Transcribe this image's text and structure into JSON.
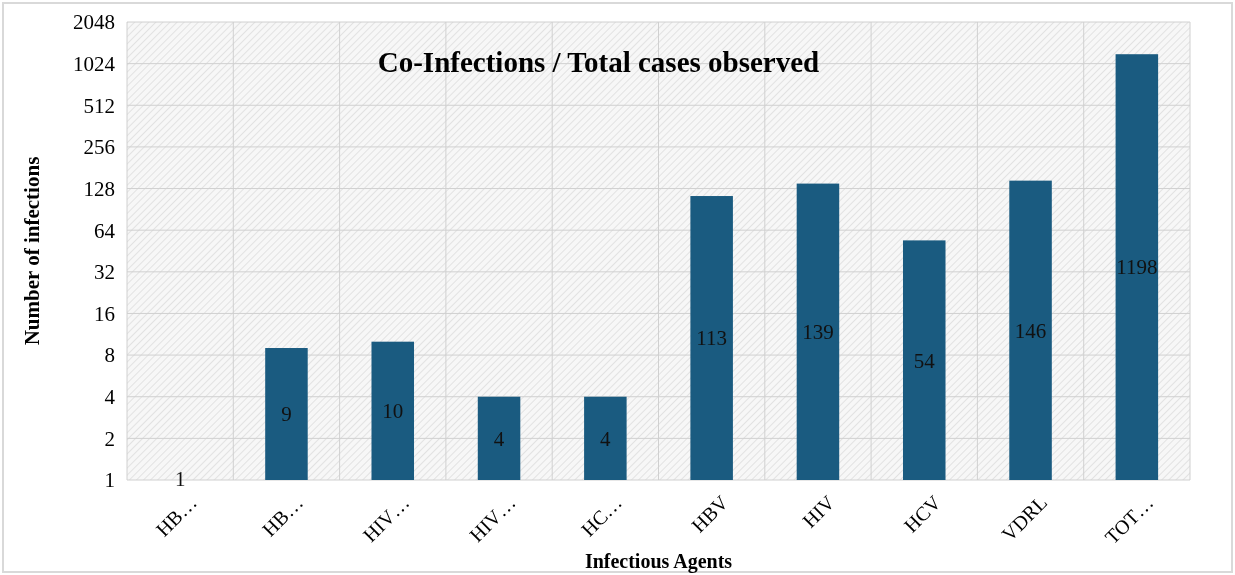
{
  "chart_data": {
    "type": "bar",
    "title": "Co-Infections / Total cases observed",
    "xlabel": "Infectious Agents",
    "ylabel": "Number of infections",
    "categories": [
      "HB…",
      "HB…",
      "HIV…",
      "HIV…",
      "HC…",
      "HBV",
      "HIV",
      "HCV",
      "VDRL",
      "TOT…"
    ],
    "values": [
      1,
      9,
      10,
      4,
      4,
      113,
      139,
      54,
      146,
      1198
    ],
    "colors": [
      "#2a5a9c",
      "#1a5b80",
      "#1a5b80",
      "#1a5b80",
      "#1a5b80",
      "#1a5b80",
      "#1a5b80",
      "#1a5b80",
      "#1a5b80",
      "#1a5b80"
    ],
    "log": "y",
    "ylim": [
      1,
      2048
    ],
    "yticks": [
      1,
      2,
      4,
      8,
      16,
      32,
      64,
      128,
      256,
      512,
      1024,
      2048
    ],
    "grid": true,
    "data_labels": true
  }
}
